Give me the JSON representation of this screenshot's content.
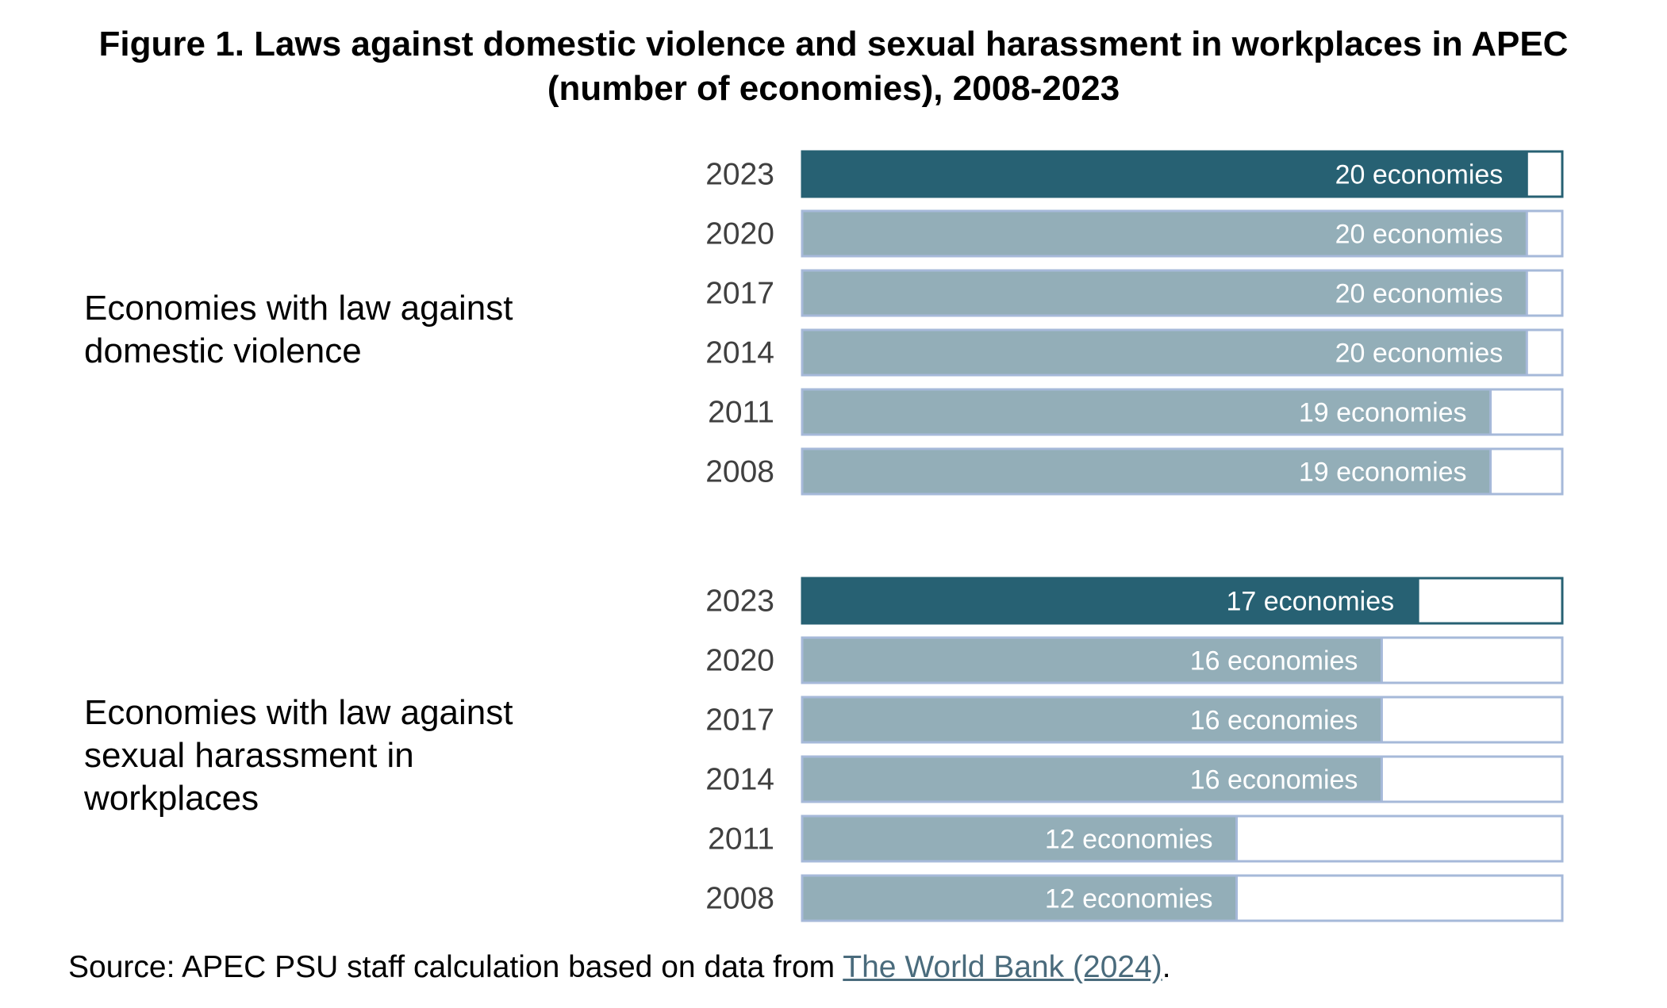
{
  "title_line1": "Figure 1. Laws against domestic violence and sexual harassment in workplaces in APEC",
  "title_line2": "(number of economies), 2008-2023",
  "source": {
    "prefix": "Source: APEC PSU staff calculation based on data from ",
    "link_text": "The World Bank (2024)",
    "suffix": "."
  },
  "colors": {
    "highlight_fill": "#276173",
    "bar_fill": "#93aeb8",
    "bar_border": "#a6b9d9",
    "label_text": "#ffffff",
    "year_text": "#404040"
  },
  "chart_data": [
    {
      "type": "bar",
      "orientation": "horizontal",
      "group_label": [
        "Economies with law against",
        "domestic violence"
      ],
      "categories": [
        "2023",
        "2020",
        "2017",
        "2014",
        "2011",
        "2008"
      ],
      "values": [
        20,
        20,
        20,
        20,
        19,
        19
      ],
      "labels": [
        "20 economies",
        "20 economies",
        "20 economies",
        "20 economies",
        "19 economies",
        "19 economies"
      ],
      "xlim": [
        0,
        21
      ],
      "highlight": "2023"
    },
    {
      "type": "bar",
      "orientation": "horizontal",
      "group_label": [
        "Economies with law against",
        "sexual harassment in",
        "workplaces"
      ],
      "categories": [
        "2023",
        "2020",
        "2017",
        "2014",
        "2011",
        "2008"
      ],
      "values": [
        17,
        16,
        16,
        16,
        12,
        12
      ],
      "labels": [
        "17 economies",
        "16 economies",
        "16 economies",
        "16 economies",
        "12 economies",
        "12 economies"
      ],
      "xlim": [
        0,
        21
      ],
      "highlight": "2023"
    }
  ]
}
